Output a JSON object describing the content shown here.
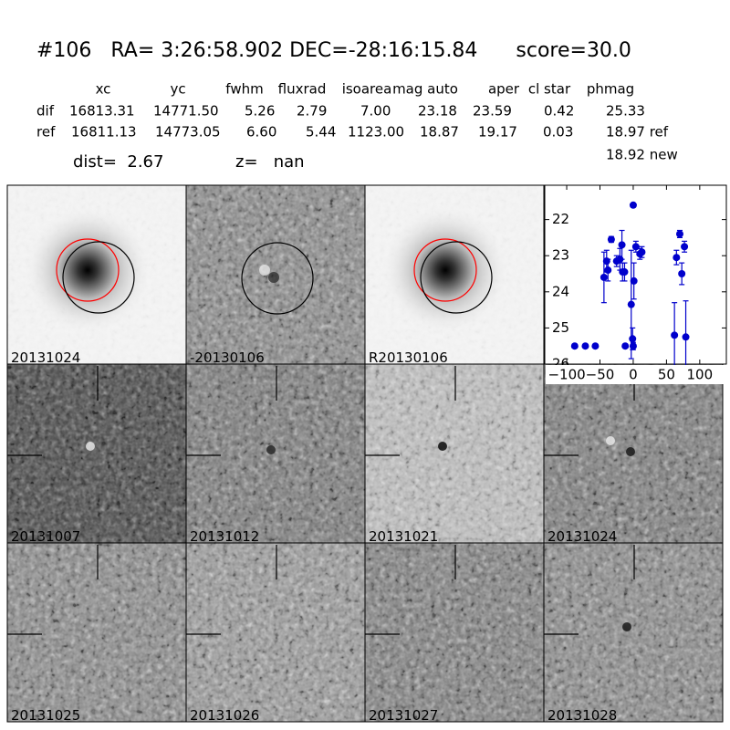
{
  "header": {
    "title": "#106   RA= 3:26:58.902 DEC=-28:16:15.84      score=30.0",
    "columns": [
      "xc",
      "yc",
      "fwhm",
      "fluxrad",
      "isoarea",
      "mag auto",
      "aper",
      "cl star",
      "phmag"
    ],
    "rows": [
      {
        "label": "dif",
        "values": [
          "16813.31",
          "14771.50",
          "5.26",
          "2.79",
          "7.00",
          "23.18",
          "23.59",
          "0.42",
          "25.33"
        ]
      },
      {
        "label": "ref",
        "values": [
          "16811.13",
          "14773.05",
          "6.60",
          "5.44",
          "1123.00",
          "18.87",
          "19.17",
          "0.03",
          "18.97 ref"
        ]
      }
    ],
    "extra": "18.92 new",
    "dist": "dist=  2.67",
    "z": "z=   nan"
  },
  "panels": [
    {
      "label": "20131024"
    },
    {
      "label": "-20130106"
    },
    {
      "label": "R20130106"
    },
    {
      "label": "20131007"
    },
    {
      "label": "20131012"
    },
    {
      "label": "20131021"
    },
    {
      "label": "20131024",
      "color": "#ff0000"
    },
    {
      "label": "20131025"
    },
    {
      "label": "20131026"
    },
    {
      "label": "20131027"
    },
    {
      "label": "20131028"
    }
  ],
  "chart_data": {
    "type": "errorbar",
    "x": [
      -88,
      -72,
      -57,
      -44,
      -40,
      -38,
      -33,
      -25,
      -20,
      -17,
      -16,
      -13,
      -12,
      -3,
      -1,
      0,
      0,
      1,
      4,
      10,
      13,
      62,
      65,
      70,
      73,
      77,
      79
    ],
    "values": [
      25.5,
      25.5,
      25.5,
      23.6,
      23.15,
      23.4,
      22.55,
      23.15,
      23.1,
      22.7,
      23.45,
      23.45,
      25.5,
      24.35,
      25.3,
      21.6,
      25.5,
      23.7,
      22.75,
      22.95,
      22.9,
      25.2,
      23.05,
      22.4,
      23.5,
      22.75,
      25.25
    ],
    "errors": [
      0.05,
      0.05,
      0.05,
      0.7,
      0.3,
      0.3,
      0.08,
      0.15,
      0.3,
      0.4,
      0.25,
      0.25,
      0.05,
      1.5,
      0.3,
      0.05,
      0.1,
      0.5,
      0.15,
      0.15,
      0.15,
      0.9,
      0.2,
      0.1,
      0.3,
      0.15,
      1.0
    ],
    "color": "#0000cc",
    "xlim": [
      -133,
      140
    ],
    "ylim": [
      26,
      21.05
    ],
    "xticks": [
      {
        "value": -100,
        "label": "−100"
      },
      {
        "value": -50,
        "label": "−50"
      },
      0,
      50,
      100
    ],
    "yticks": [
      22,
      23,
      24,
      25,
      26
    ]
  }
}
